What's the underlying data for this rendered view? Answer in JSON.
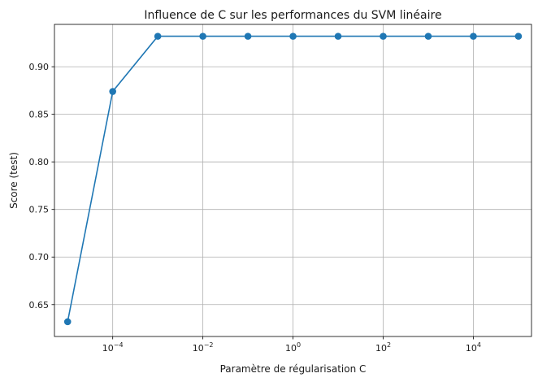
{
  "chart_data": {
    "type": "line",
    "title": "Influence de C sur les performances du SVM linéaire",
    "xlabel": "Paramètre de régularisation C",
    "ylabel": "Score (test)",
    "x_scale": "log",
    "x": [
      1e-05,
      0.0001,
      0.001,
      0.01,
      0.1,
      1,
      10,
      100,
      1000,
      10000,
      100000
    ],
    "series": [
      {
        "values": [
          0.632,
          0.874,
          0.932,
          0.932,
          0.932,
          0.932,
          0.932,
          0.932,
          0.932,
          0.932,
          0.932
        ],
        "color": "#1f77b4",
        "marker": "circle"
      }
    ],
    "xlim": [
      5.1e-06,
      195000
    ],
    "ylim": [
      0.6165,
      0.9445
    ],
    "x_ticks": [
      {
        "value": 0.0001,
        "base": "10",
        "exp": "−4"
      },
      {
        "value": 0.01,
        "base": "10",
        "exp": "−2"
      },
      {
        "value": 1,
        "base": "10",
        "exp": "0"
      },
      {
        "value": 100,
        "base": "10",
        "exp": "2"
      },
      {
        "value": 10000,
        "base": "10",
        "exp": "4"
      }
    ],
    "y_ticks": [
      0.65,
      0.7,
      0.75,
      0.8,
      0.85,
      0.9
    ],
    "y_tick_labels": [
      "0.65",
      "0.70",
      "0.75",
      "0.80",
      "0.85",
      "0.90"
    ],
    "grid": true
  }
}
